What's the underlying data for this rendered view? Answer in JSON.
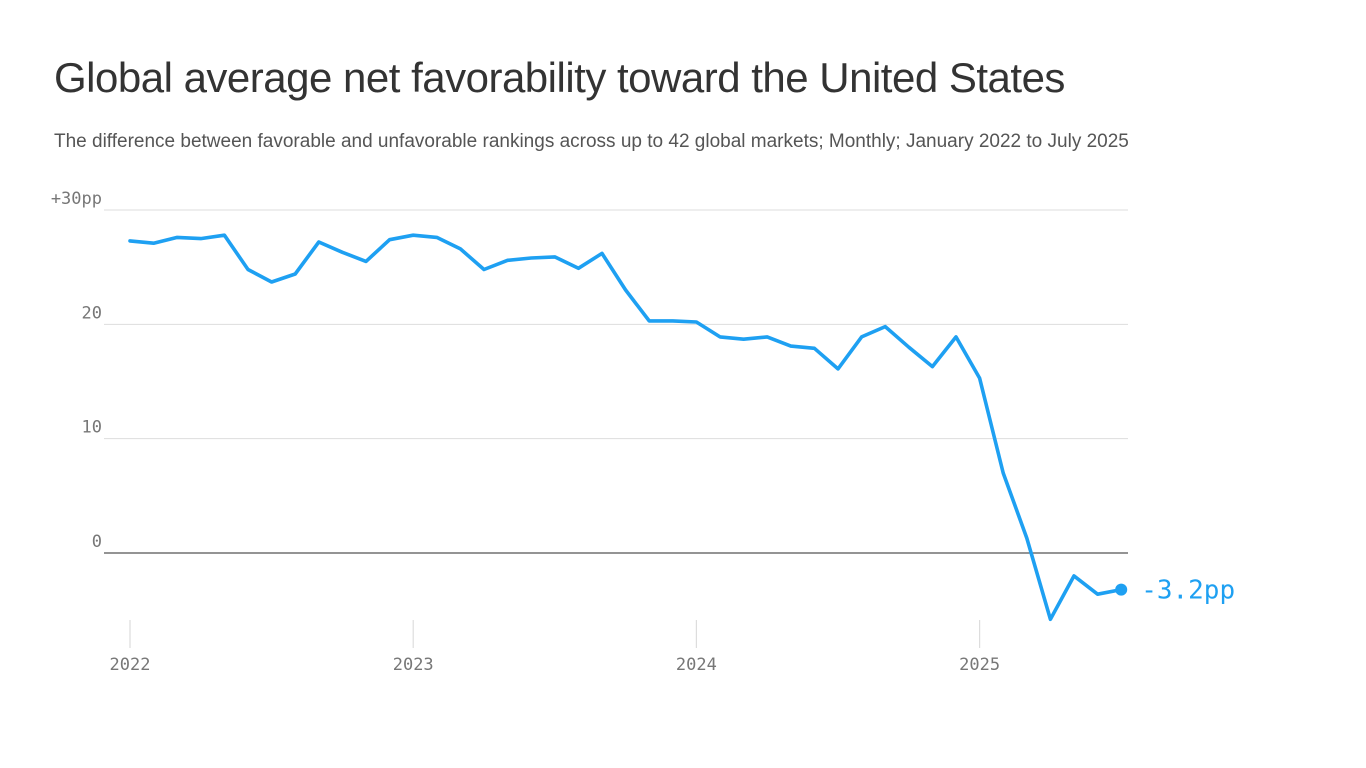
{
  "header": {
    "title": "Global average net favorability toward the United States",
    "subtitle": "The difference between favorable and unfavorable rankings across up to 42 global markets; Monthly; January 2022 to July 2025"
  },
  "colors": {
    "line": "#1ea0f2",
    "grid": "#dddddd",
    "zero_line": "#555555",
    "tick_text": "#777777"
  },
  "chart_data": {
    "type": "line",
    "title": "Global average net favorability toward the United States",
    "subtitle": "The difference between favorable and unfavorable rankings across up to 42 global markets; Monthly; January 2022 to July 2025",
    "xlabel": "",
    "ylabel": "",
    "x_start": "2022-01",
    "x_end": "2025-07",
    "xlim": [
      "2022-01",
      "2025-07"
    ],
    "ylim": [
      -8,
      30
    ],
    "grid": true,
    "x": [
      "2022-01",
      "2022-02",
      "2022-03",
      "2022-04",
      "2022-05",
      "2022-06",
      "2022-07",
      "2022-08",
      "2022-09",
      "2022-10",
      "2022-11",
      "2022-12",
      "2023-01",
      "2023-02",
      "2023-03",
      "2023-04",
      "2023-05",
      "2023-06",
      "2023-07",
      "2023-08",
      "2023-09",
      "2023-10",
      "2023-11",
      "2023-12",
      "2024-01",
      "2024-02",
      "2024-03",
      "2024-04",
      "2024-05",
      "2024-06",
      "2024-07",
      "2024-08",
      "2024-09",
      "2024-10",
      "2024-11",
      "2024-12",
      "2025-01",
      "2025-02",
      "2025-03",
      "2025-04",
      "2025-05",
      "2025-06",
      "2025-07"
    ],
    "series": [
      {
        "values": [
          27.3,
          27.1,
          27.6,
          27.5,
          27.8,
          24.8,
          23.7,
          24.4,
          27.2,
          26.3,
          25.5,
          27.4,
          27.8,
          27.6,
          26.6,
          24.8,
          25.6,
          25.8,
          25.9,
          24.9,
          26.2,
          23.0,
          20.3,
          20.3,
          20.2,
          18.9,
          18.7,
          18.9,
          18.1,
          17.9,
          16.1,
          18.9,
          19.8,
          18.0,
          16.3,
          18.9,
          15.3,
          7.0,
          1.3,
          -5.8,
          -2.0,
          -3.6,
          -3.2
        ]
      }
    ],
    "y_ticks": [
      {
        "value": 30,
        "label": "+30pp"
      },
      {
        "value": 20,
        "label": "20"
      },
      {
        "value": 10,
        "label": "10"
      },
      {
        "value": 0,
        "label": "0"
      }
    ],
    "x_ticks": [
      {
        "x": "2022-01",
        "label": "2022"
      },
      {
        "x": "2023-01",
        "label": "2023"
      },
      {
        "x": "2024-01",
        "label": "2024"
      },
      {
        "x": "2025-01",
        "label": "2025"
      }
    ],
    "end_label": "-3.2pp"
  }
}
